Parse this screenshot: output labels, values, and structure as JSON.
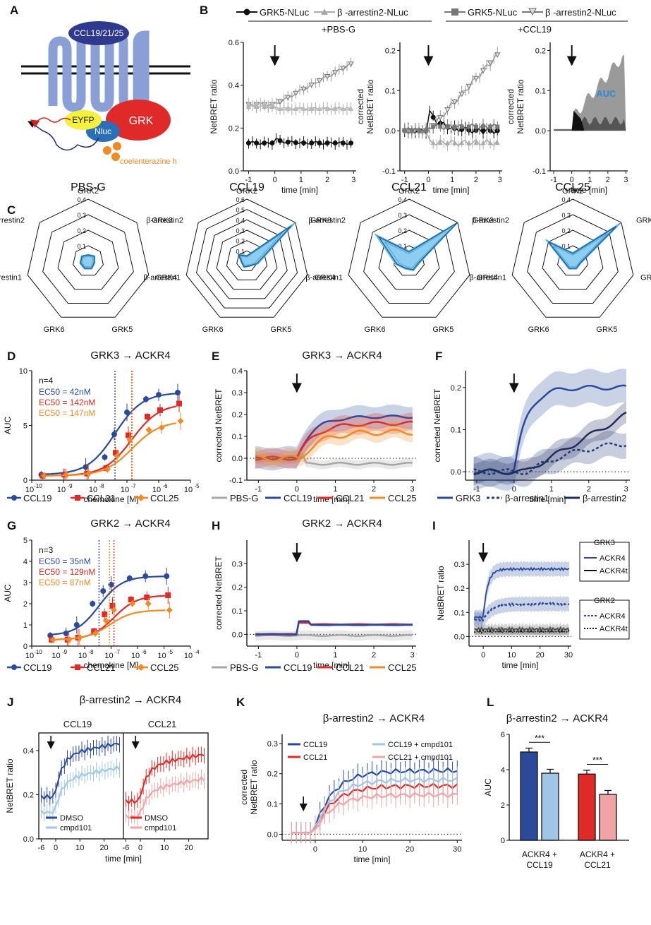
{
  "colors": {
    "ccl19": "#2b4a9b",
    "ccl21": "#e02a27",
    "ccl25": "#f08a24",
    "pbs": "#a7a7a7",
    "grk3": "#2b4a9b",
    "barr1": "#233c7a",
    "barr2": "#1f2d5c",
    "lightblue": "#9fc6e6",
    "pink": "#f2a3a5",
    "radar": "#47a6d8",
    "dark": "#111111",
    "gray": "#8a8a8a"
  },
  "panelA": {
    "label": "A",
    "receptor": "CCL19/21/25",
    "eyfp": "EYFP",
    "nluc": "Nluc",
    "grk": "GRK",
    "substrate": "coelenterazine h"
  },
  "panelB": {
    "label": "B",
    "legend": [
      "GRK5-NLuc",
      "β -arrestin2-NLuc",
      "GRK5-NLuc",
      "β -arrestin2-NLuc"
    ],
    "group1": "+PBS-G",
    "group2": "+CCL19",
    "ylabel1": "NetBRET ratio",
    "ylabel2": "corrected NetBRET ratio",
    "ylabel3": "corrected NetBRET ratio",
    "xlabel": "time [min]",
    "auc_label": "AUC",
    "xticks": [
      "-1",
      "0",
      "1",
      "2",
      "3"
    ],
    "yticks1": [
      "0.0",
      "0.2",
      "0.4",
      "0.6"
    ],
    "yticks2": [
      "-0.1",
      "0.0",
      "0.1",
      "0.2"
    ]
  },
  "panelC": {
    "label": "C",
    "titles": [
      "PBS-G",
      "CCL19",
      "CCL21",
      "CCL25"
    ],
    "axes": [
      "GRK2",
      "GRK3",
      "GRK4",
      "GRK5",
      "GRK6",
      "β-arrestin1",
      "β-arrestin2"
    ],
    "ticks_small": [
      "0.1",
      "0.2",
      "0.3",
      "0.4"
    ],
    "ticks_large": [
      "0.1",
      "0.2",
      "0.3",
      "0.4",
      "0.5",
      "0.6"
    ],
    "zero": "0"
  },
  "panelD": {
    "label": "D",
    "title": "GRK3 → ACKR4",
    "ylabel": "AUC",
    "xlabel": "chemokine [M]",
    "n": "n=4",
    "ec50": [
      "EC50 = 42nM",
      "EC50 = 142nM",
      "EC50 = 147nM"
    ],
    "xticks": [
      "10",
      "10",
      "10",
      "10",
      "10",
      "10"
    ],
    "xexp": [
      "-10",
      "-9",
      "-8",
      "-7",
      "-6",
      "-5"
    ],
    "yticks": [
      "0",
      "5",
      "10"
    ],
    "legend": [
      "CCL19",
      "CCL21",
      "CCL25"
    ]
  },
  "panelE": {
    "label": "E",
    "title": "GRK3 → ACKR4",
    "ylabel": "corrected NetBRET",
    "xlabel": "time [min]",
    "xticks": [
      "-1",
      "0",
      "1",
      "2",
      "3"
    ],
    "yticks": [
      "-0.1",
      "0.0",
      "0.1",
      "0.2",
      "0.3",
      "0.4"
    ],
    "legend": [
      "PBS-G",
      "CCL19",
      "CCL21",
      "CCL25"
    ]
  },
  "panelF": {
    "label": "F",
    "ylabel": "corrected NetBRET",
    "xlabel": "time [min]",
    "xticks": [
      "-1",
      "0",
      "1",
      "2",
      "3"
    ],
    "yticks": [
      "0.0",
      "0.1",
      "0.2"
    ],
    "legend": [
      "GRK3",
      "β-arrestin1",
      "β-arrestin2"
    ]
  },
  "panelG": {
    "label": "G",
    "title": "GRK2 → ACKR4",
    "ylabel": "AUC",
    "xlabel": "chemokine [M]",
    "n": "n=3",
    "ec50": [
      "EC50 = 35nM",
      "EC50 = 129nM",
      "EC50 = 87nM"
    ],
    "xticks": [
      "10",
      "10",
      "10",
      "10",
      "10",
      "10",
      "10"
    ],
    "xexp": [
      "-10",
      "-9",
      "-8",
      "-7",
      "-6",
      "-5",
      "-4"
    ],
    "yticks": [
      "0",
      "1",
      "2",
      "3",
      "4",
      "5"
    ],
    "legend": [
      "CCL19",
      "CCL21",
      "CCL25"
    ]
  },
  "panelH": {
    "label": "H",
    "title": "GRK2 → ACKR4",
    "ylabel": "corrected NetBRET",
    "xlabel": "time [min]",
    "xticks": [
      "-1",
      "0",
      "1",
      "2",
      "3"
    ],
    "yticks": [
      "0.0",
      "0.1",
      "0.2",
      "0.3"
    ],
    "legend": [
      "PBS-G",
      "CCL19",
      "CCL21",
      "CCL25"
    ]
  },
  "panelI": {
    "label": "I",
    "ylabel": "NetBRET ratio",
    "xlabel": "time [min]",
    "xticks": [
      "0",
      "10",
      "20",
      "30"
    ],
    "yticks": [
      "0.0",
      "0.1",
      "0.2",
      "0.3"
    ],
    "grk3": "GRK3",
    "grk2": "GRK2",
    "entries": [
      "ACKR4",
      "ACKR4t",
      "ACKR4",
      "ACKR4t"
    ]
  },
  "panelJ": {
    "label": "J",
    "title": "β-arrestin2 → ACKR4",
    "sub": [
      "CCL19",
      "CCL21"
    ],
    "ylabel": "NetBRET ratio",
    "xlabel": "time [min]",
    "xticks1": [
      "-6",
      "0",
      "10",
      "20"
    ],
    "xticks2": [
      "-6",
      "0",
      "10",
      "20"
    ],
    "yticks": [
      "0.0",
      "0.2",
      "0.4"
    ],
    "legend1": [
      "DMSO",
      "cmpd101"
    ],
    "legend2": [
      "DMSO",
      "cmpd101"
    ]
  },
  "panelK": {
    "label": "K",
    "title": "β-arrestin2 → ACKR4",
    "ylabel": "corrected NetBRET ratio",
    "xlabel": "time [min]",
    "xticks": [
      "0",
      "10",
      "20",
      "30"
    ],
    "yticks": [
      "0.0",
      "0.1",
      "0.2",
      "0.3"
    ],
    "legend": [
      "CCL19",
      "CCL21",
      "CCL19 + cmpd101",
      "CCL21 + cmpd101"
    ]
  },
  "panelL": {
    "label": "L",
    "title": "β-arrestin2 → ACKR4",
    "ylabel": "AUC",
    "yticks": [
      "0",
      "2",
      "4",
      "6"
    ],
    "cats": [
      "ACKR4 + CCL19",
      "ACKR4 + CCL21"
    ],
    "cat_lines": [
      [
        "ACKR4 +",
        "CCL19"
      ],
      [
        "ACKR4 +",
        "CCL21"
      ]
    ],
    "sig": [
      "***",
      "***"
    ]
  },
  "chart_data": [
    {
      "panel": "D",
      "type": "line",
      "title": "GRK3 → ACKR4",
      "xlabel": "chemokine [M]",
      "ylabel": "AUC",
      "ylim": [
        0,
        10
      ],
      "x_log10": [
        -9.7,
        -9,
        -8.3,
        -7.7,
        -7.4,
        -7,
        -6.4,
        -6,
        -5.4
      ],
      "series": [
        {
          "name": "CCL19",
          "values": [
            0.5,
            0.5,
            1.2,
            2.1,
            4.2,
            6.2,
            7.4,
            7.8,
            8.0
          ],
          "ec50": "42nM"
        },
        {
          "name": "CCL21",
          "values": [
            0.4,
            0.5,
            0.6,
            1.1,
            2.5,
            4.1,
            5.8,
            6.4,
            7.0
          ],
          "ec50": "142nM"
        },
        {
          "name": "CCL25",
          "values": [
            0.4,
            0.5,
            0.6,
            1.0,
            2.2,
            3.7,
            4.6,
            4.8,
            5.4
          ],
          "ec50": "147nM"
        }
      ]
    },
    {
      "panel": "G",
      "type": "line",
      "title": "GRK2 → ACKR4",
      "xlabel": "chemokine [M]",
      "ylabel": "AUC",
      "ylim": [
        0,
        5
      ],
      "x_log10": [
        -9.3,
        -8.7,
        -8.3,
        -7.7,
        -7.3,
        -7,
        -6.3,
        -5.7,
        -4.9
      ],
      "series": [
        {
          "name": "CCL19",
          "values": [
            0.5,
            0.6,
            1.0,
            2.0,
            2.6,
            2.9,
            3.2,
            3.3,
            3.3
          ],
          "ec50": "35nM"
        },
        {
          "name": "CCL21",
          "values": [
            0.3,
            0.3,
            0.4,
            0.7,
            1.5,
            1.9,
            2.2,
            2.3,
            2.4
          ],
          "ec50": "129nM"
        },
        {
          "name": "CCL25",
          "values": [
            0.3,
            0.3,
            0.4,
            0.6,
            1.2,
            1.7,
            2.0,
            2.0,
            1.7
          ],
          "ec50": "87nM"
        }
      ]
    },
    {
      "panel": "L",
      "type": "bar",
      "title": "β-arrestin2 → ACKR4",
      "ylabel": "AUC",
      "ylim": [
        0,
        6
      ],
      "categories": [
        "ACKR4 + CCL19",
        "ACKR4 + CCL21"
      ],
      "series": [
        {
          "name": "DMSO",
          "values": [
            5.0,
            3.75
          ]
        },
        {
          "name": "cmpd101",
          "values": [
            3.8,
            2.6
          ]
        }
      ]
    }
  ]
}
